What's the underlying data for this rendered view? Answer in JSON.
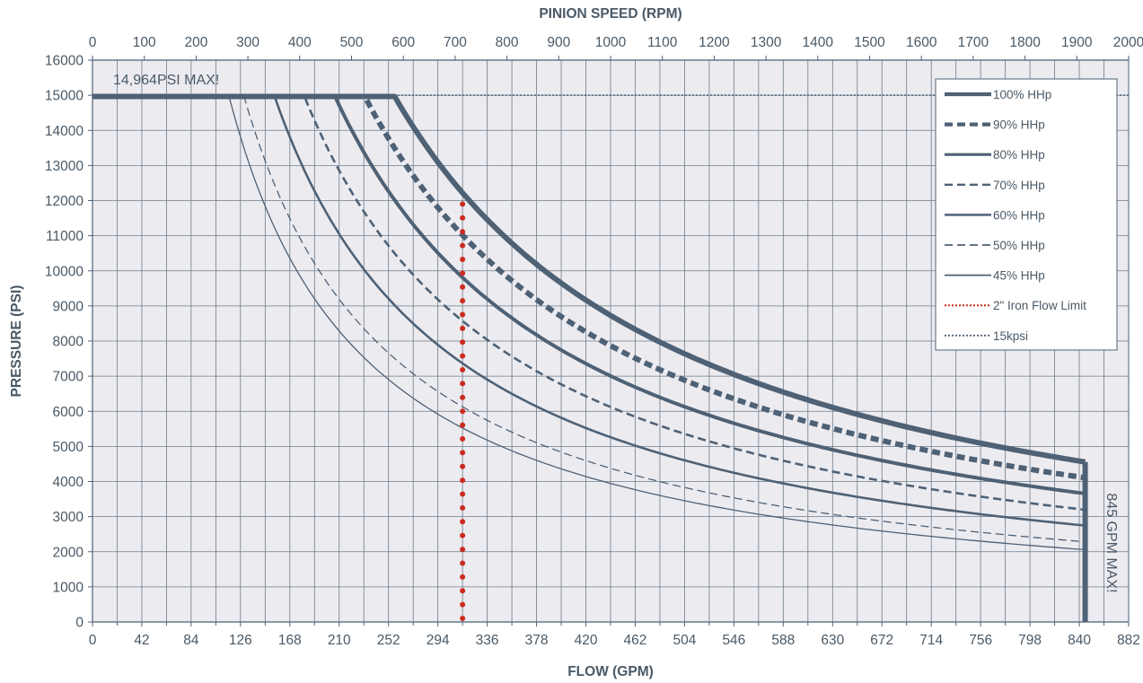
{
  "chart_data": {
    "type": "line",
    "title": "",
    "xlabel": "FLOW (GPM)",
    "x2label": "PINION SPEED (RPM)",
    "ylabel": "PRESSURE (PSI)",
    "xlim": [
      0,
      882
    ],
    "x2lim": [
      0,
      2000
    ],
    "ylim": [
      0,
      16000
    ],
    "x_ticks": [
      0,
      42,
      84,
      126,
      168,
      210,
      252,
      294,
      336,
      378,
      420,
      462,
      504,
      546,
      588,
      630,
      672,
      714,
      756,
      798,
      840,
      882
    ],
    "x2_ticks": [
      0,
      100,
      200,
      300,
      400,
      500,
      600,
      700,
      800,
      900,
      1000,
      1100,
      1200,
      1300,
      1400,
      1500,
      1600,
      1700,
      1800,
      1900,
      2000
    ],
    "y_ticks": [
      0,
      1000,
      2000,
      3000,
      4000,
      5000,
      6000,
      7000,
      8000,
      9000,
      10000,
      11000,
      12000,
      13000,
      14000,
      15000,
      16000
    ],
    "grid": true,
    "legend_position": "top-right",
    "max_pressure_psi": 14964,
    "max_flow_gpm": 845,
    "annotations": [
      "14,964PSI MAX!",
      "845 GPM MAX!"
    ],
    "series": [
      {
        "name": "100% HHp",
        "hp_constant": 3850000,
        "style": "solid",
        "weight": "heavy",
        "color": "#4e6175"
      },
      {
        "name": "90% HHp",
        "hp_constant": 3470000,
        "style": "dashed",
        "weight": "heavy",
        "color": "#4e6175"
      },
      {
        "name": "80% HHp",
        "hp_constant": 3090000,
        "style": "solid",
        "weight": "medium",
        "color": "#4e6175"
      },
      {
        "name": "70% HHp",
        "hp_constant": 2700000,
        "style": "dashed",
        "weight": "thin",
        "color": "#4e6175"
      },
      {
        "name": "60% HHp",
        "hp_constant": 2320000,
        "style": "solid",
        "weight": "thin",
        "color": "#4e6175"
      },
      {
        "name": "50% HHp",
        "hp_constant": 1930000,
        "style": "dashed",
        "weight": "hair",
        "color": "#4e6175"
      },
      {
        "name": "45% HHp",
        "hp_constant": 1740000,
        "style": "solid",
        "weight": "hair",
        "color": "#4e6175"
      }
    ],
    "reference_lines": [
      {
        "name": "2\" Iron Flow Limit",
        "orientation": "vertical",
        "x": 315,
        "y_range": [
          0,
          11900
        ],
        "style": "dotted",
        "color": "#cc2a1e"
      },
      {
        "name": "15kpsi",
        "orientation": "horizontal",
        "y": 15000,
        "style": "dotted",
        "color": "#4e6175"
      }
    ]
  }
}
